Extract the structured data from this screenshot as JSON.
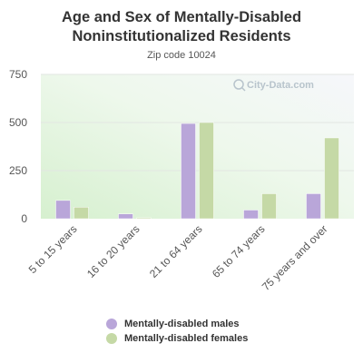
{
  "chart_data": {
    "type": "bar",
    "title": "Age and Sex of Mentally-Disabled Noninstitutionalized Residents",
    "subtitle": "Zip code 10024",
    "categories": [
      "5 to 15 years",
      "16 to 20 years",
      "21 to 64 years",
      "65 to 74 years",
      "75 years and over"
    ],
    "series": [
      {
        "name": "Mentally-disabled males",
        "color": "#b9a6d9",
        "values": [
          95,
          25,
          495,
          45,
          130
        ]
      },
      {
        "name": "Mentally-disabled females",
        "color": "#c5d9a6",
        "values": [
          60,
          5,
          500,
          130,
          420
        ]
      }
    ],
    "ylim": [
      0,
      750
    ],
    "yticks": [
      0,
      250,
      500,
      750
    ],
    "grid": true,
    "legend_placement": "bottom",
    "watermark": "City-Data.com"
  }
}
